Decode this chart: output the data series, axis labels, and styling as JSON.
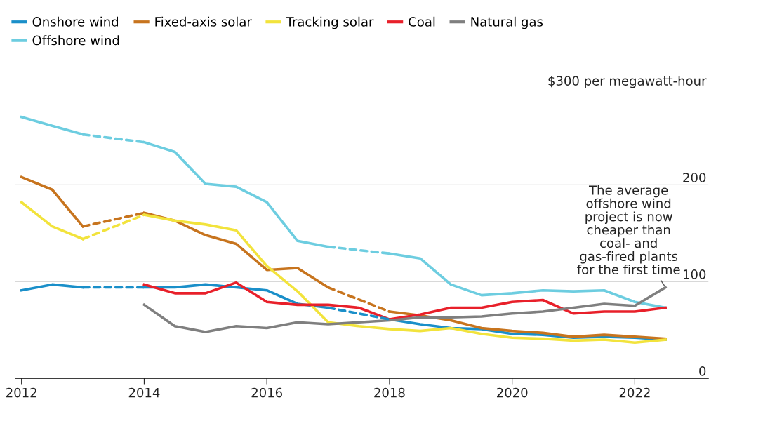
{
  "chart_data": {
    "type": "line",
    "xlim": [
      2011.9,
      2023.2
    ],
    "xticks": [
      2012,
      2014,
      2016,
      2018,
      2020,
      2022
    ],
    "ylim": [
      0,
      300
    ],
    "yticks": [
      0,
      100,
      200,
      {
        "value": 300,
        "label": "$300 per megawatt-hour"
      }
    ],
    "grid": "y",
    "legend": "top left",
    "line_style": "solid",
    "marker": "none",
    "annotations": [
      {
        "text": "The average\noffshore wind\nproject is now\ncheaper than\ncoal- and\ngas-fired plants\nfor the first time",
        "x": 2022.5,
        "y": 94
      }
    ],
    "series": [
      {
        "name": "Onshore wind",
        "color": "#1a8fc9",
        "x": [
          2012,
          2012.5,
          2013
        ],
        "values": [
          91,
          97,
          94
        ]
      },
      {
        "color": "#1a8fc9",
        "line_style": "dashed",
        "x": [
          2013,
          2014
        ],
        "values": [
          94,
          94
        ]
      },
      {
        "color": "#1a8fc9",
        "x": [
          2014,
          2014.5,
          2015,
          2015.5,
          2016,
          2016.5,
          2017
        ],
        "values": [
          94,
          94,
          97,
          94,
          91,
          77,
          73
        ]
      },
      {
        "color": "#1a8fc9",
        "line_style": "dashed",
        "x": [
          2017,
          2018
        ],
        "values": [
          73,
          61
        ]
      },
      {
        "color": "#1a8fc9",
        "x": [
          2018,
          2018.5,
          2019,
          2019.5,
          2020,
          2020.5,
          2021,
          2021.5,
          2022,
          2022.5
        ],
        "values": [
          61,
          56,
          52,
          51,
          46,
          45,
          42,
          43,
          42,
          40
        ]
      },
      {
        "name": "Offshore wind",
        "color": "#6dcde0",
        "x": [
          2012,
          2012.5,
          2013
        ],
        "values": [
          270,
          261,
          252
        ]
      },
      {
        "color": "#6dcde0",
        "line_style": "dashed",
        "x": [
          2013,
          2014
        ],
        "values": [
          252,
          244
        ]
      },
      {
        "color": "#6dcde0",
        "x": [
          2014,
          2014.5,
          2015,
          2015.5,
          2016,
          2016.5,
          2017
        ],
        "values": [
          244,
          234,
          201,
          198,
          182,
          142,
          136
        ]
      },
      {
        "color": "#6dcde0",
        "line_style": "dashed",
        "x": [
          2017,
          2018
        ],
        "values": [
          136,
          129
        ]
      },
      {
        "color": "#6dcde0",
        "x": [
          2018,
          2018.5,
          2019,
          2019.5,
          2020,
          2020.5,
          2021,
          2021.5,
          2022,
          2022.5
        ],
        "values": [
          129,
          124,
          97,
          86,
          88,
          91,
          90,
          91,
          79,
          73
        ]
      },
      {
        "name": "Fixed-axis solar",
        "color": "#c7741e",
        "x": [
          2012,
          2012.5,
          2013
        ],
        "values": [
          208,
          195,
          157
        ]
      },
      {
        "color": "#c7741e",
        "line_style": "dashed",
        "x": [
          2013,
          2014
        ],
        "values": [
          157,
          171
        ]
      },
      {
        "color": "#c7741e",
        "x": [
          2014,
          2014.5,
          2015,
          2015.5,
          2016,
          2016.5,
          2017
        ],
        "values": [
          171,
          163,
          148,
          139,
          112,
          114,
          94
        ]
      },
      {
        "color": "#c7741e",
        "line_style": "dashed",
        "x": [
          2017,
          2018
        ],
        "values": [
          94,
          69
        ]
      },
      {
        "color": "#c7741e",
        "x": [
          2018,
          2018.5,
          2019,
          2019.5,
          2020,
          2020.5,
          2021,
          2021.5,
          2022,
          2022.5
        ],
        "values": [
          69,
          65,
          60,
          52,
          49,
          47,
          43,
          45,
          43,
          41
        ]
      },
      {
        "name": "Tracking solar",
        "color": "#f2e33c",
        "x": [
          2012,
          2012.5,
          2013
        ],
        "values": [
          182,
          157,
          144
        ]
      },
      {
        "color": "#f2e33c",
        "line_style": "dashed",
        "x": [
          2013,
          2014
        ],
        "values": [
          144,
          169
        ]
      },
      {
        "color": "#f2e33c",
        "x": [
          2014,
          2014.5,
          2015,
          2015.5,
          2016,
          2016.5,
          2017,
          2017.5,
          2018,
          2018.5,
          2019,
          2019.5,
          2020,
          2020.5,
          2021,
          2021.5,
          2022,
          2022.5
        ],
        "values": [
          169,
          163,
          159,
          153,
          116,
          90,
          58,
          54,
          51,
          49,
          52,
          46,
          42,
          41,
          39,
          40,
          37,
          40
        ]
      },
      {
        "name": "Coal",
        "color": "#e8202a",
        "x": [
          2014,
          2014.5,
          2015,
          2015.5,
          2016,
          2016.5,
          2017,
          2017.5,
          2018,
          2018.5,
          2019,
          2019.5,
          2020,
          2020.5,
          2021,
          2021.5,
          2022,
          2022.5
        ],
        "values": [
          97,
          88,
          88,
          99,
          79,
          76,
          76,
          73,
          61,
          66,
          73,
          73,
          79,
          81,
          67,
          69,
          69,
          73
        ]
      },
      {
        "name": "Natural gas",
        "color": "#7f7f7f",
        "x": [
          2014,
          2014.5,
          2015,
          2015.5,
          2016,
          2016.5,
          2017,
          2017.5,
          2018,
          2018.5,
          2019,
          2019.5,
          2020,
          2020.5,
          2021,
          2021.5,
          2022,
          2022.5
        ],
        "values": [
          76,
          54,
          48,
          54,
          52,
          58,
          56,
          58,
          60,
          63,
          63,
          64,
          67,
          69,
          73,
          77,
          75,
          94
        ]
      }
    ]
  }
}
